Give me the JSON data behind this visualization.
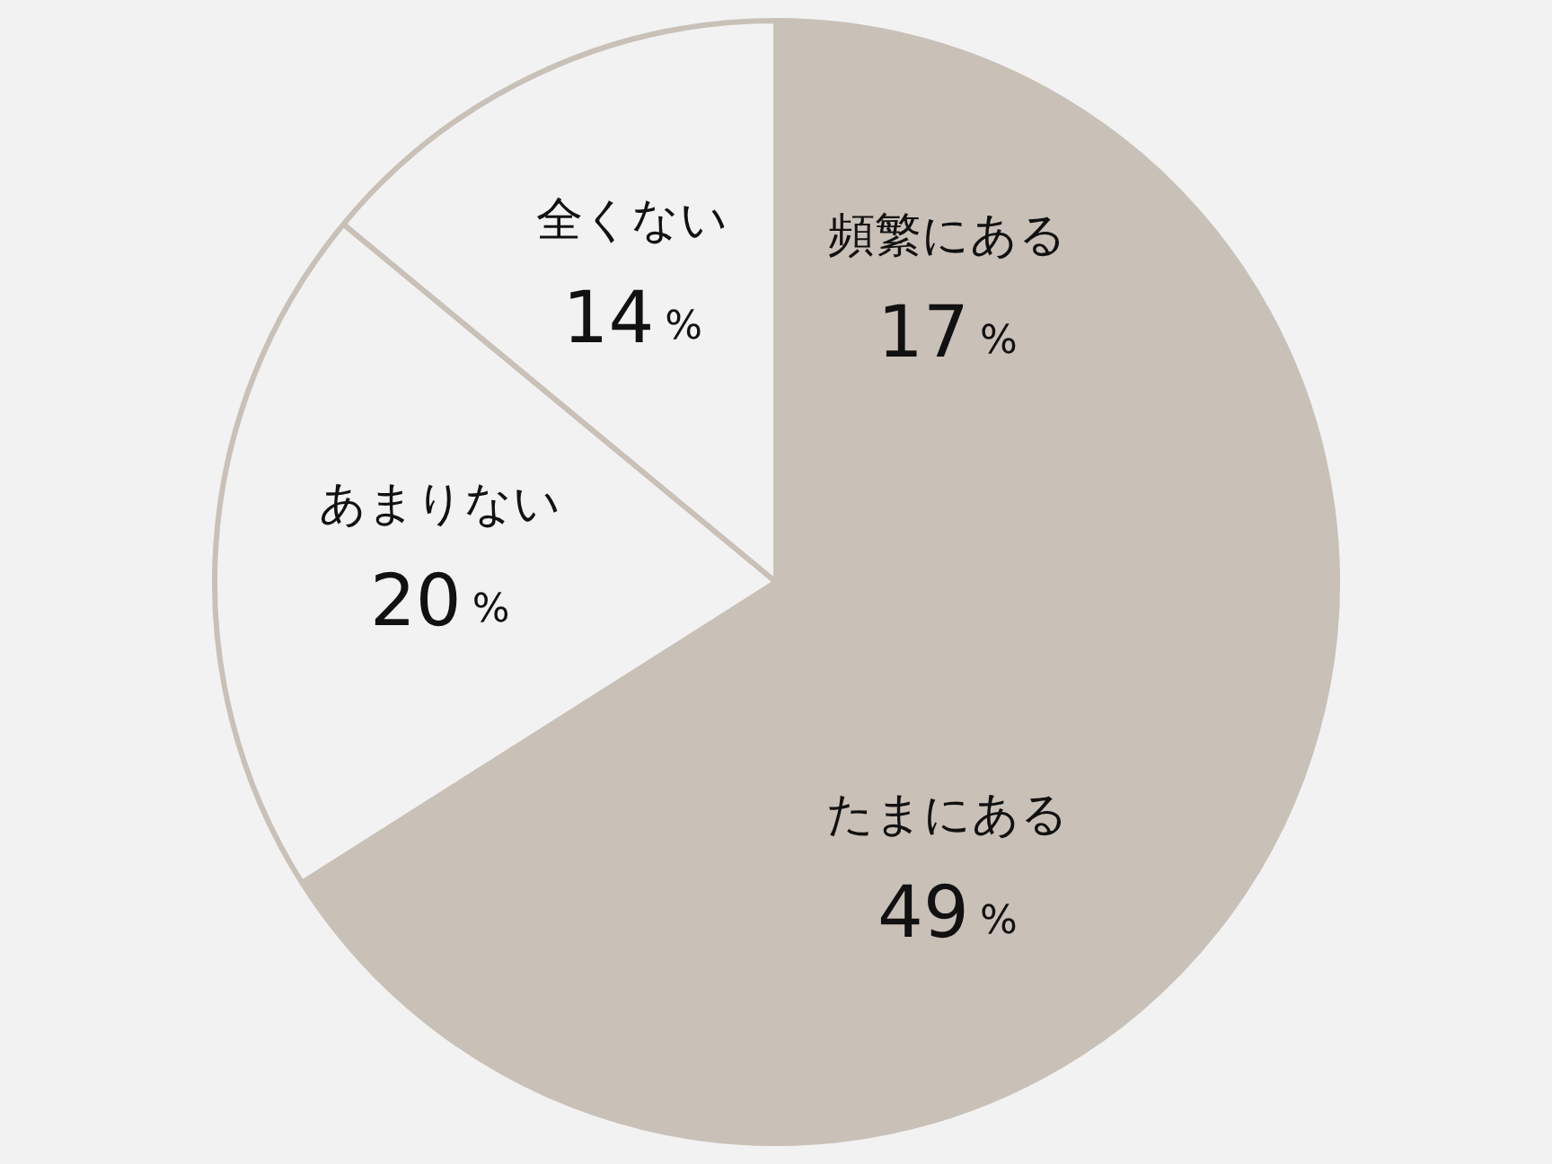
{
  "chart_data": {
    "type": "pie",
    "categories": [
      "頻繁にある",
      "たまにある",
      "あまりない",
      "全くない"
    ],
    "values": [
      17,
      49,
      20,
      14
    ],
    "colors": [
      "#c9c0b7",
      "#c9c0b7",
      "#f2f2f2",
      "#f2f2f2"
    ],
    "value_labels": [
      "17%",
      "49%",
      "20%",
      "14%"
    ],
    "legend": false
  }
}
